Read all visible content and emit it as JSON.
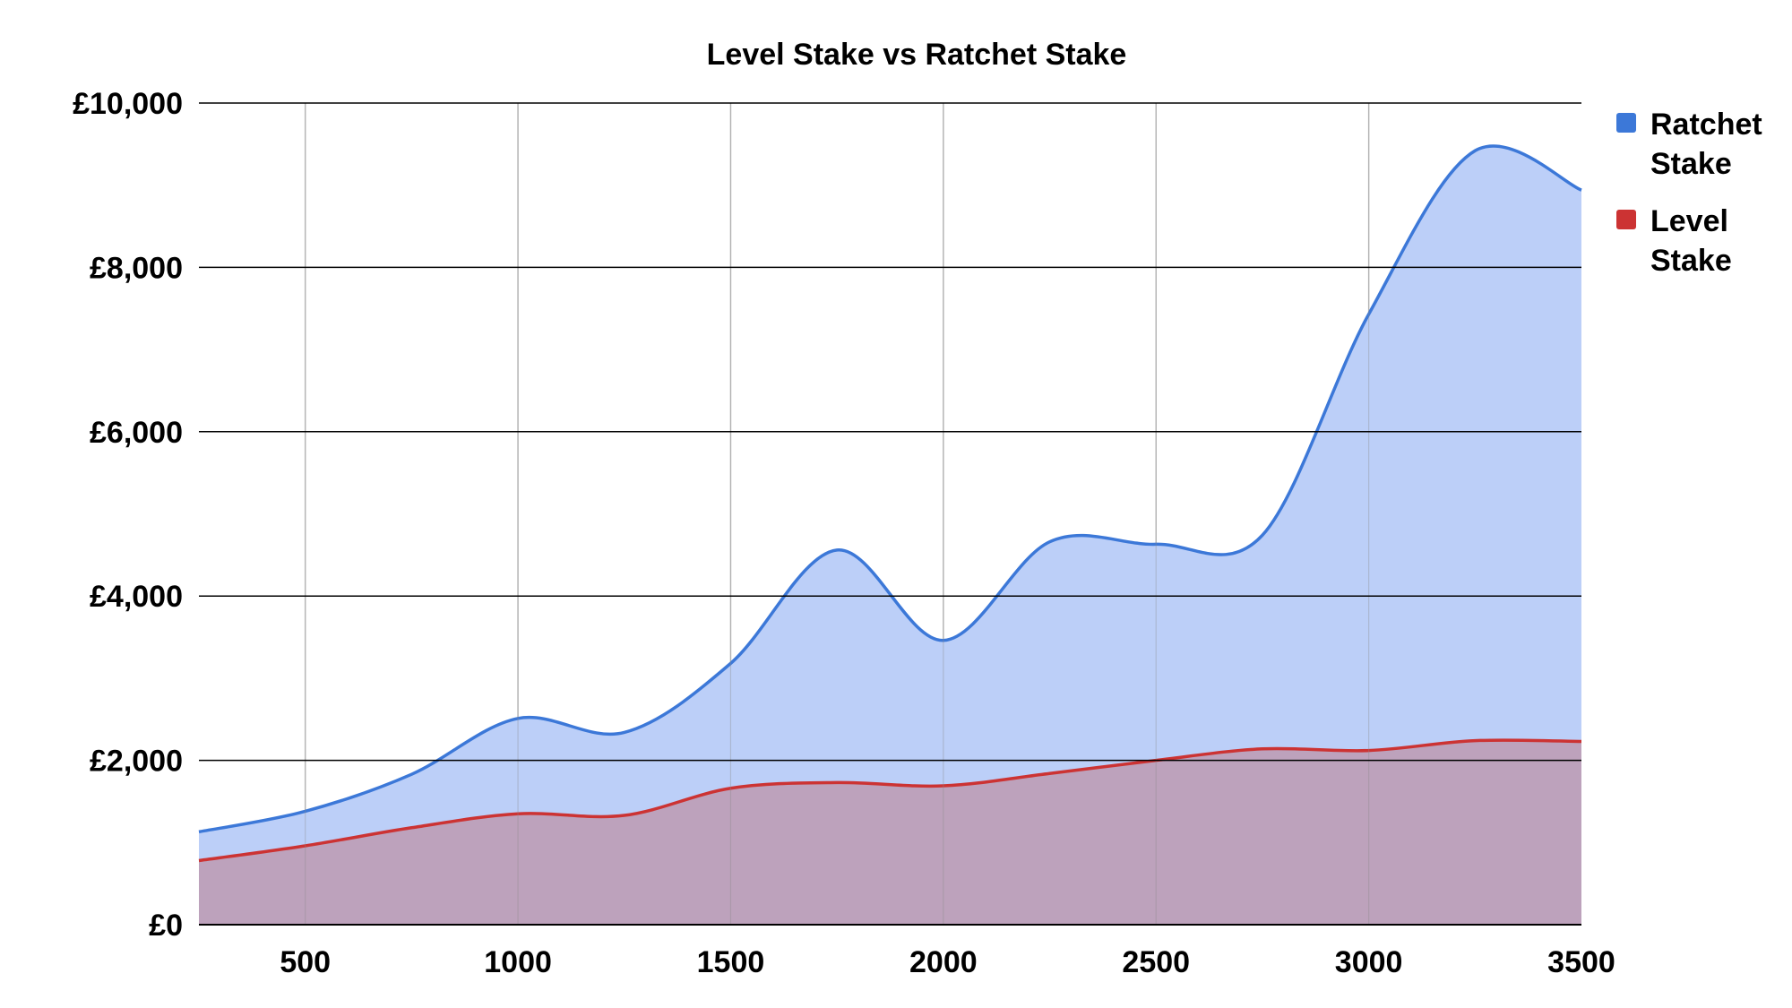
{
  "chart_data": {
    "type": "area",
    "title": "Level Stake vs Ratchet Stake",
    "xlabel": "",
    "ylabel": "",
    "x": [
      250,
      500,
      750,
      1000,
      1250,
      1500,
      1750,
      2000,
      2250,
      2500,
      2750,
      3000,
      3250,
      3500
    ],
    "xlim": [
      250,
      3500
    ],
    "xticks": [
      500,
      1000,
      1500,
      2000,
      2500,
      3000,
      3500
    ],
    "xtick_labels": [
      "500",
      "1000",
      "1500",
      "2000",
      "2500",
      "3000",
      "3500"
    ],
    "ylim": [
      0,
      10000
    ],
    "yticks": [
      0,
      2000,
      4000,
      6000,
      8000,
      10000
    ],
    "ytick_labels": [
      "£0",
      "£2,000",
      "£4,000",
      "£6,000",
      "£8,000",
      "£10,000"
    ],
    "grid": true,
    "legend_position": "right",
    "series": [
      {
        "name": "Ratchet Stake",
        "legend_label_lines": [
          "Ratchet",
          "Stake"
        ],
        "color": "#3c78d8",
        "fill": "#bccff8",
        "values": [
          1130,
          1380,
          1830,
          2510,
          2340,
          3180,
          4560,
          3460,
          4660,
          4630,
          4740,
          7430,
          9420,
          8940
        ]
      },
      {
        "name": "Level Stake",
        "legend_label_lines": [
          "Level",
          "Stake"
        ],
        "color": "#cc3333",
        "fill": "#bd9ab2",
        "values": [
          780,
          960,
          1180,
          1350,
          1330,
          1660,
          1730,
          1690,
          1840,
          2000,
          2140,
          2120,
          2240,
          2230
        ]
      }
    ]
  }
}
